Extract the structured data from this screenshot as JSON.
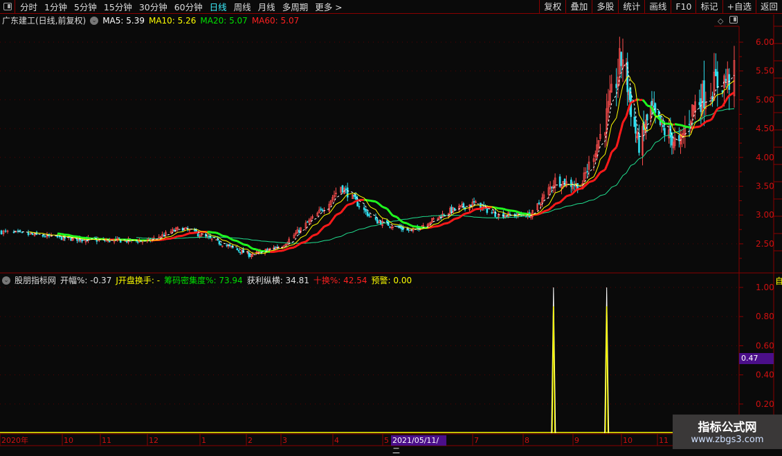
{
  "toolbar": {
    "periods": [
      "分时",
      "1分钟",
      "5分钟",
      "15分钟",
      "30分钟",
      "60分钟",
      "日线",
      "周线",
      "月线",
      "多周期",
      "更多 >"
    ],
    "active_period": "日线",
    "right_buttons": [
      "复权",
      "叠加",
      "多股",
      "统计",
      "画线",
      "F10",
      "标记",
      "+自选",
      "返回"
    ]
  },
  "main": {
    "title": "广东建工(日线,前复权)",
    "ma": [
      {
        "label": "MA5: 5.39",
        "color": "#ffffff"
      },
      {
        "label": "MA10: 5.26",
        "color": "#ffff00"
      },
      {
        "label": "MA20: 5.07",
        "color": "#00e000"
      },
      {
        "label": "MA60: 5.07",
        "color": "#ff2020"
      }
    ]
  },
  "sub": {
    "title": "股朋指标网",
    "items": [
      {
        "label": "开幅%: -0.37",
        "color": "#e0e0e0"
      },
      {
        "label": "J开盘换手: -",
        "color": "#ffff00"
      },
      {
        "label": "筹码密集度%: 73.94",
        "color": "#00e000"
      },
      {
        "label": "获利纵横: 34.81",
        "color": "#e0e0e0"
      },
      {
        "label": "十换%: 42.54",
        "color": "#ff2020"
      },
      {
        "label": "预警: 0.00",
        "color": "#ffff00"
      }
    ],
    "current_value": "0.47",
    "right_strip_label": "自"
  },
  "date_axis": {
    "labels": [
      "2020年",
      "10",
      "11",
      "12",
      "1",
      "2",
      "3",
      "4",
      "5",
      "7",
      "8",
      "9",
      "10",
      "11"
    ],
    "cursor_date": "2021/05/11/二"
  },
  "watermark": {
    "line1": "指标公式网",
    "line2": "www.zbgs3.com"
  },
  "colors": {
    "up": "#ff4d4d",
    "down": "#30e0f0",
    "grid": "#5a0000",
    "axis_text": "#d01010"
  },
  "chart_data": [
    {
      "type": "candlestick",
      "price_ticks": [
        "6.00",
        "5.50",
        "5.00",
        "4.50",
        "4.00",
        "3.50",
        "3.00",
        "2.50"
      ],
      "ylim": [
        2.2,
        6.3
      ],
      "close_keypoints": [
        [
          "2020-09-01",
          2.71
        ],
        [
          "2020-10-01",
          2.6
        ],
        [
          "2020-11-01",
          2.56
        ],
        [
          "2020-12-01",
          2.55
        ],
        [
          "2020-12-20",
          2.78
        ],
        [
          "2021-01-10",
          2.55
        ],
        [
          "2021-02-03",
          2.3
        ],
        [
          "2021-03-01",
          2.47
        ],
        [
          "2021-03-26",
          3.13
        ],
        [
          "2021-04-05",
          3.5
        ],
        [
          "2021-04-25",
          2.9
        ],
        [
          "2021-05-20",
          2.72
        ],
        [
          "2021-06-15",
          3.07
        ],
        [
          "2021-07-01",
          3.2
        ],
        [
          "2021-07-15",
          3.0
        ],
        [
          "2021-08-05",
          3.0
        ],
        [
          "2021-08-20",
          3.6
        ],
        [
          "2021-09-05",
          3.5
        ],
        [
          "2021-09-20",
          4.6
        ],
        [
          "2021-10-01",
          5.8
        ],
        [
          "2021-10-10",
          4.6
        ],
        [
          "2021-10-15",
          4.2
        ],
        [
          "2021-10-25",
          4.8
        ],
        [
          "2021-11-05",
          4.45
        ],
        [
          "2021-11-15",
          4.2
        ],
        [
          "2021-11-25",
          4.9
        ],
        [
          "2021-12-10",
          5.3
        ],
        [
          "2021-12-20",
          5.4
        ]
      ],
      "moving_averages": [
        5,
        10,
        20,
        60
      ]
    },
    {
      "type": "line",
      "yticks": [
        "1.00",
        "0.80",
        "0.60",
        "0.40",
        "0.20"
      ],
      "ylim": [
        0,
        1.05
      ],
      "events": [
        {
          "date": "2021-08-19",
          "value": 1.0
        },
        {
          "date": "2021-09-21",
          "value": 1.0
        }
      ]
    }
  ]
}
